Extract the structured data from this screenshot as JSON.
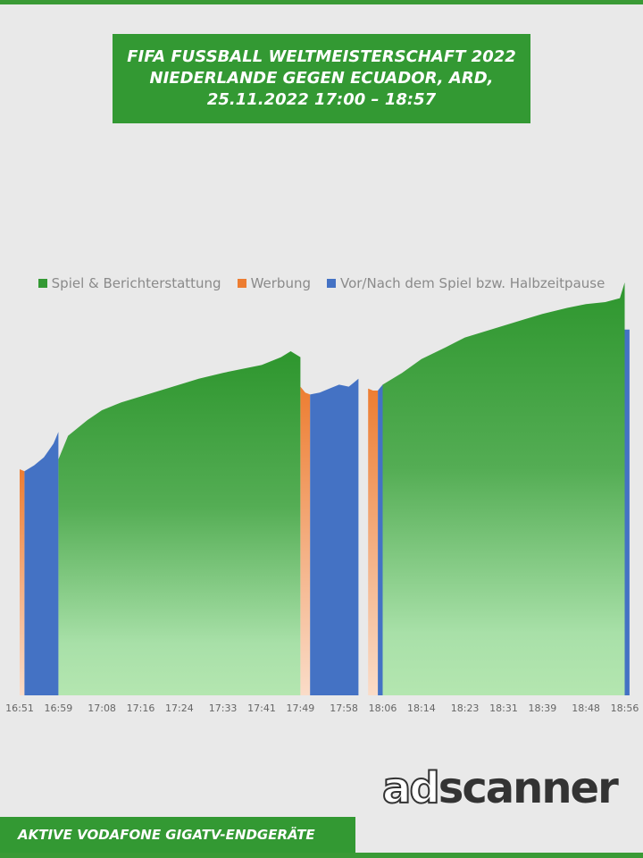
{
  "header": {
    "title_line1": "FIFA FUSSBALL WELTMEISTERSCHAFT 2022",
    "title_line2": "NIEDERLANDE GEGEN ECUADOR,  ARD,",
    "title_line3": "25.11.2022  17:00 – 18:57"
  },
  "legend": [
    {
      "label": "Spiel & Berichterstattung",
      "color": "#339933"
    },
    {
      "label": "Werbung",
      "color": "#ed7d31"
    },
    {
      "label": "Vor/Nach dem Spiel bzw. Halbzeitpause",
      "color": "#4472c4"
    }
  ],
  "chart_data": {
    "type": "area",
    "title": "",
    "xlabel": "",
    "ylabel": "",
    "x_axis": {
      "start": "16:51",
      "end": "18:57",
      "unit": "minutes"
    },
    "x_ticks": [
      "16:51",
      "16:59",
      "17:08",
      "17:16",
      "17:24",
      "17:33",
      "17:41",
      "17:49",
      "17:58",
      "18:06",
      "18:14",
      "18:23",
      "18:31",
      "18:39",
      "18:48",
      "18:56"
    ],
    "y_axis": {
      "shown": false,
      "relative_scale": [
        0,
        100
      ]
    },
    "series": [
      {
        "name": "Spiel & Berichterstattung",
        "color": "#339933",
        "points": [
          [
            "16:59",
            60
          ],
          [
            "17:01",
            66
          ],
          [
            "17:05",
            70
          ],
          [
            "17:08",
            72.5
          ],
          [
            "17:12",
            74.5
          ],
          [
            "17:16",
            76
          ],
          [
            "17:20",
            77.5
          ],
          [
            "17:24",
            79
          ],
          [
            "17:28",
            80.5
          ],
          [
            "17:33",
            82
          ],
          [
            "17:37",
            83
          ],
          [
            "17:41",
            84
          ],
          [
            "17:45",
            86
          ],
          [
            "17:47",
            87.5
          ],
          [
            "17:49",
            86
          ],
          [
            "18:06",
            79
          ],
          [
            "18:10",
            82
          ],
          [
            "18:14",
            85.5
          ],
          [
            "18:19",
            88.5
          ],
          [
            "18:23",
            91
          ],
          [
            "18:27",
            92.5
          ],
          [
            "18:31",
            94
          ],
          [
            "18:35",
            95.5
          ],
          [
            "18:39",
            97
          ],
          [
            "18:44",
            98.5
          ],
          [
            "18:48",
            99.5
          ],
          [
            "18:52",
            100
          ],
          [
            "18:55",
            101
          ],
          [
            "18:56",
            105
          ]
        ]
      },
      {
        "name": "Werbung",
        "color": "#ed7d31",
        "segments": [
          [
            [
              "16:51",
              57.5
            ],
            [
              "16:52",
              57
            ]
          ],
          [
            [
              "17:49",
              78.5
            ],
            [
              "17:50",
              77
            ],
            [
              "17:51",
              76.5
            ]
          ],
          [
            [
              "18:03",
              78
            ],
            [
              "18:04",
              77.5
            ],
            [
              "18:05",
              77.5
            ]
          ]
        ]
      },
      {
        "name": "Vor/Nach dem Spiel bzw. Halbzeitpause",
        "color": "#4472c4",
        "segments": [
          [
            [
              "16:52",
              57
            ],
            [
              "16:54",
              58.5
            ],
            [
              "16:56",
              60.5
            ],
            [
              "16:58",
              64
            ],
            [
              "16:59",
              67
            ]
          ],
          [
            [
              "17:51",
              76.5
            ],
            [
              "17:53",
              77
            ],
            [
              "17:55",
              78
            ],
            [
              "17:57",
              79
            ],
            [
              "17:59",
              78.5
            ],
            [
              "18:00",
              79.5
            ],
            [
              "18:01",
              80.5
            ]
          ],
          [
            [
              "18:05",
              77.5
            ],
            [
              "18:06",
              79
            ]
          ],
          [
            [
              "18:56",
              93
            ],
            [
              "18:57",
              93
            ]
          ]
        ]
      }
    ]
  },
  "footer": {
    "label": "AKTIVE VODAFONE GIGATV-ENDGERÄTE",
    "logo_part1": "ad",
    "logo_part2": "scanner"
  }
}
